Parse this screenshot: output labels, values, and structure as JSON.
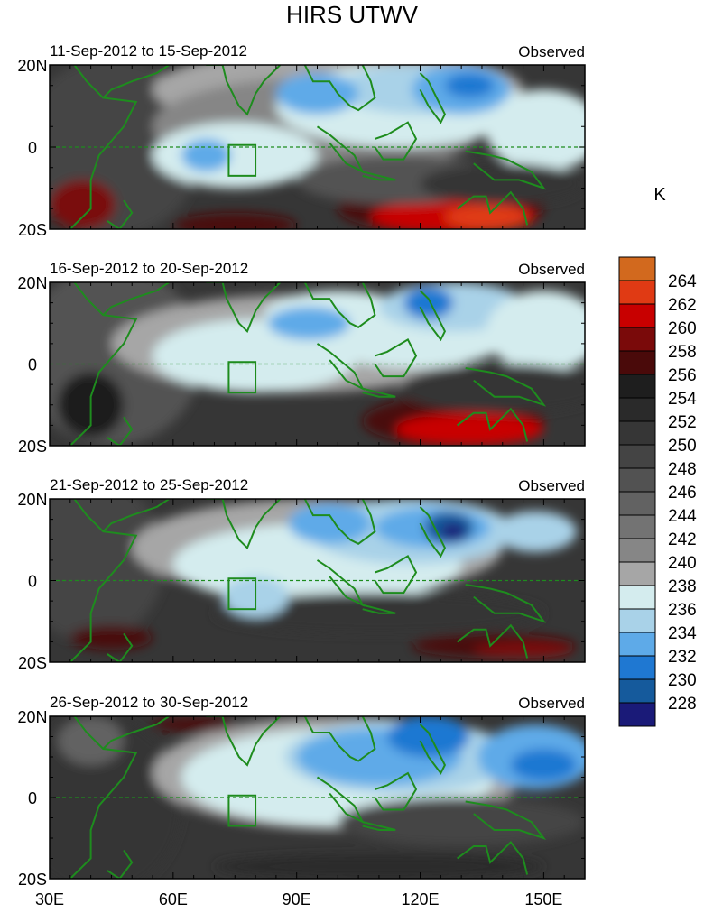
{
  "title": "HIRS UTWV",
  "colorbar": {
    "unit": "K",
    "levels": [
      264,
      262,
      260,
      258,
      256,
      254,
      252,
      250,
      248,
      246,
      244,
      242,
      240,
      238,
      236,
      234,
      232,
      230,
      228
    ],
    "colors_top_to_bottom": [
      "#d2691e",
      "#e03a14",
      "#c80000",
      "#7a0a0a",
      "#4a0a0a",
      "#1e1e1e",
      "#2a2a2a",
      "#363636",
      "#444444",
      "#525252",
      "#626262",
      "#737373",
      "#868686",
      "#a6a6a6",
      "#d4ecee",
      "#a9d2e8",
      "#5eaae8",
      "#1f78d2",
      "#155a9c",
      "#1a1a78"
    ]
  },
  "map": {
    "lon_ticks": [
      "30E",
      "60E",
      "90E",
      "120E",
      "150E"
    ],
    "lat_ticks": [
      "20N",
      "0",
      "20S"
    ],
    "lon_range": [
      30,
      160
    ],
    "lat_range": [
      -20,
      20
    ],
    "coastline_color": "#1e8c1e"
  },
  "panels": [
    {
      "period": "11-Sep-2012 to 15-Sep-2012",
      "tag": "Observed"
    },
    {
      "period": "16-Sep-2012 to 20-Sep-2012",
      "tag": "Observed"
    },
    {
      "period": "21-Sep-2012 to 25-Sep-2012",
      "tag": "Observed"
    },
    {
      "period": "26-Sep-2012 to 30-Sep-2012",
      "tag": "Observed"
    }
  ]
}
